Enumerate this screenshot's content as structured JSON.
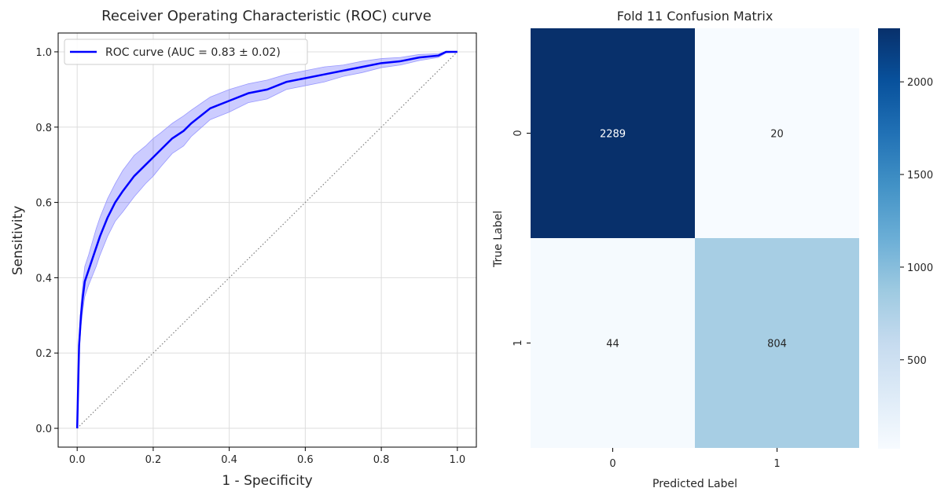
{
  "chart_data": [
    {
      "type": "line",
      "title": "Receiver Operating Characteristic (ROC) curve",
      "xlabel": "1 - Specificity",
      "ylabel": "Sensitivity",
      "xlim": [
        -0.05,
        1.05
      ],
      "ylim": [
        -0.05,
        1.05
      ],
      "xticks": [
        0.0,
        0.2,
        0.4,
        0.6,
        0.8,
        1.0
      ],
      "yticks": [
        0.0,
        0.2,
        0.4,
        0.6,
        0.8,
        1.0
      ],
      "tick_labels": [
        "0.0",
        "0.2",
        "0.4",
        "0.6",
        "0.8",
        "1.0"
      ],
      "grid": true,
      "legend_position": "top-left",
      "series": [
        {
          "name": "ROC curve (AUC = 0.83 ± 0.02)",
          "color": "#0000ff",
          "x": [
            0.0,
            0.005,
            0.01,
            0.015,
            0.02,
            0.03,
            0.04,
            0.05,
            0.06,
            0.08,
            0.1,
            0.12,
            0.15,
            0.18,
            0.2,
            0.22,
            0.25,
            0.28,
            0.3,
            0.35,
            0.4,
            0.45,
            0.5,
            0.55,
            0.6,
            0.65,
            0.7,
            0.75,
            0.8,
            0.85,
            0.9,
            0.95,
            0.97,
            1.0
          ],
          "y": [
            0.0,
            0.22,
            0.3,
            0.35,
            0.39,
            0.42,
            0.45,
            0.48,
            0.51,
            0.56,
            0.6,
            0.63,
            0.67,
            0.7,
            0.72,
            0.74,
            0.77,
            0.79,
            0.81,
            0.85,
            0.87,
            0.89,
            0.9,
            0.92,
            0.93,
            0.94,
            0.95,
            0.96,
            0.97,
            0.975,
            0.985,
            0.99,
            1.0,
            1.0
          ],
          "band_halfwidth": [
            0.0,
            0.02,
            0.03,
            0.035,
            0.04,
            0.04,
            0.045,
            0.05,
            0.05,
            0.05,
            0.05,
            0.055,
            0.055,
            0.05,
            0.05,
            0.045,
            0.04,
            0.04,
            0.035,
            0.03,
            0.03,
            0.025,
            0.025,
            0.02,
            0.02,
            0.02,
            0.015,
            0.015,
            0.012,
            0.01,
            0.008,
            0.005,
            0.003,
            0.0
          ]
        },
        {
          "name": "",
          "style": "dotted",
          "color": "#808080",
          "x": [
            0.0,
            1.0
          ],
          "y": [
            0.0,
            1.0
          ]
        }
      ]
    },
    {
      "type": "heatmap",
      "title": "Fold 11 Confusion Matrix",
      "xlabel": "Predicted Label",
      "ylabel": "True Label",
      "x_categories": [
        "0",
        "1"
      ],
      "y_categories": [
        "0",
        "1"
      ],
      "values": [
        [
          2289,
          20
        ],
        [
          44,
          804
        ]
      ],
      "colormap": "Blues",
      "colorbar_range": [
        20,
        2289
      ],
      "colorbar_ticks": [
        500,
        1000,
        1500,
        2000
      ]
    }
  ]
}
